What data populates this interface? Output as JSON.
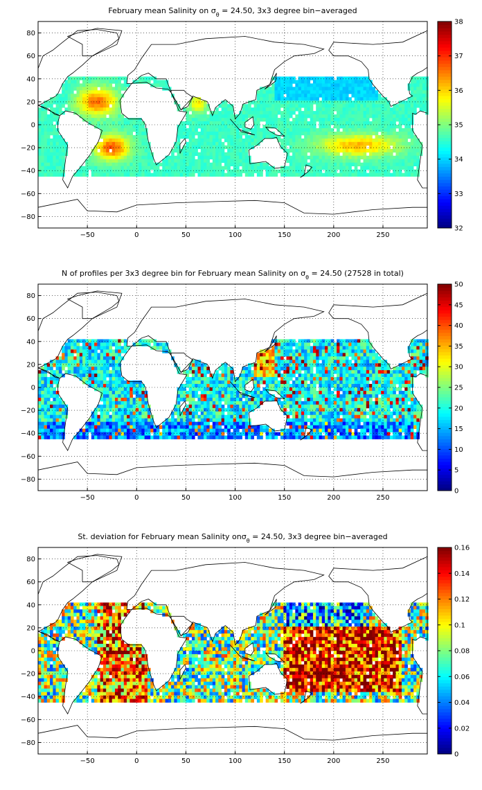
{
  "panels": [
    {
      "title_main": "February mean Salinity on σ",
      "title_sub": "θ",
      "title_rest": " = 24.50, 3x3 degree bin−averaged",
      "colorbar": {
        "min": 32,
        "max": 38,
        "ticks": [
          "32",
          "33",
          "34",
          "35",
          "36",
          "37",
          "38"
        ]
      },
      "field": "salinity"
    },
    {
      "title_main": "N of profiles per 3x3 degree bin for February mean Salinity on σ",
      "title_sub": "θ",
      "title_rest": " = 24.50 (27528 in total)",
      "colorbar": {
        "min": 0,
        "max": 50,
        "ticks": [
          "0",
          "5",
          "10",
          "15",
          "20",
          "25",
          "30",
          "35",
          "40",
          "45",
          "50"
        ]
      },
      "field": "count"
    },
    {
      "title_main": "St. deviation for February mean Salinity onσ",
      "title_sub": "θ",
      "title_rest": " = 24.50, 3x3 degree bin−averaged",
      "colorbar": {
        "min": 0,
        "max": 0.16,
        "ticks": [
          "0",
          "0.02",
          "0.04",
          "0.06",
          "0.08",
          "0.1",
          "0.12",
          "0.14",
          "0.16"
        ]
      },
      "field": "stdev"
    }
  ],
  "axes": {
    "x_ticks": [
      "−50",
      "0",
      "50",
      "100",
      "150",
      "200",
      "250"
    ],
    "y_ticks": [
      "80",
      "60",
      "40",
      "20",
      "0",
      "−20",
      "−40",
      "−60",
      "−80"
    ],
    "xlim": [
      -100,
      295
    ],
    "ylim": [
      -90,
      90
    ]
  },
  "chart_data": {
    "type": "heatmap",
    "x_label": "",
    "y_label": "",
    "colormap": "jet"
  }
}
